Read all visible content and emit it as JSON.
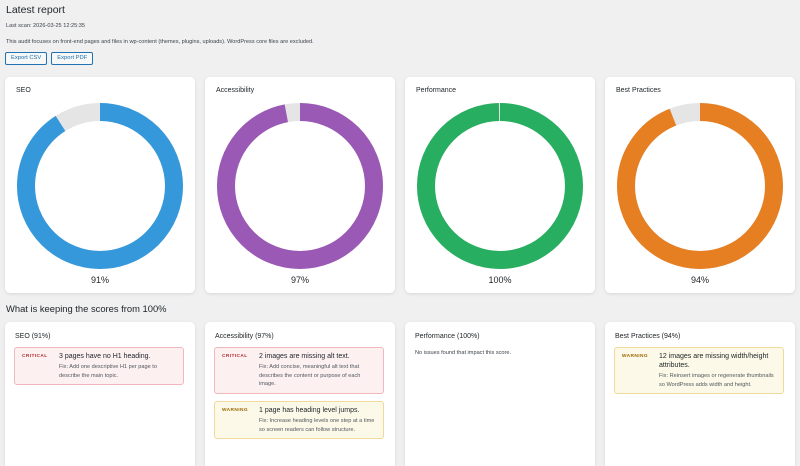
{
  "header": {
    "title": "Latest report",
    "last_scan": "Last scan: 2026-03-25 12:25:35",
    "description": "This audit focuses on front-end pages and files in wp-content (themes, plugins, uploads). WordPress core files are excluded.",
    "export_csv": "Export CSV",
    "export_pdf": "Export PDF"
  },
  "scores": [
    {
      "label": "SEO",
      "percent_text": "91%",
      "value": 91,
      "color": "#3498db"
    },
    {
      "label": "Accessibility",
      "percent_text": "97%",
      "value": 97,
      "color": "#9b59b6"
    },
    {
      "label": "Performance",
      "percent_text": "100%",
      "value": 100,
      "color": "#27ae60"
    },
    {
      "label": "Best Practices",
      "percent_text": "94%",
      "value": 94,
      "color": "#e67e22"
    }
  ],
  "track_color": "#e5e5e5",
  "issues_section": {
    "title": "What is keeping the scores from 100%",
    "cards": [
      {
        "heading": "SEO (91%)",
        "issues": [
          {
            "level": "CRITICAL",
            "title": "3 pages have no H1 heading.",
            "fix": "Fix: Add one descriptive H1 per page to describe the main topic."
          }
        ]
      },
      {
        "heading": "Accessibility (97%)",
        "issues": [
          {
            "level": "CRITICAL",
            "title": "2 images are missing alt text.",
            "fix": "Fix: Add concise, meaningful alt text that describes the content or purpose of each image."
          },
          {
            "level": "WARNING",
            "title": "1 page has heading level jumps.",
            "fix": "Fix: Increase heading levels one step at a time so screen readers can follow structure."
          }
        ]
      },
      {
        "heading": "Performance (100%)",
        "none_text": "No issues found that impact this score."
      },
      {
        "heading": "Best Practices (94%)",
        "issues": [
          {
            "level": "WARNING",
            "title": "12 images are missing width/height attributes.",
            "fix": "Fix: Reinsert images or regenerate thumbnails so WordPress adds width and height."
          }
        ]
      }
    ]
  }
}
